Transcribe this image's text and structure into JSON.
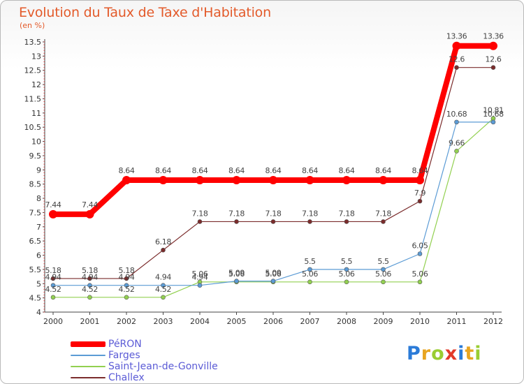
{
  "header": {
    "title": "Evolution du Taux de Taxe d'Habitation",
    "subtitle": "(en %)"
  },
  "logo": {
    "letters": [
      "P",
      "r",
      "o",
      "x",
      "i",
      "t",
      "i"
    ],
    "colors": [
      "#2b7bd8",
      "#e8a520",
      "#9acd32",
      "#e23a2a",
      "#2b7bd8",
      "#e8a520",
      "#9acd32"
    ]
  },
  "chart_data": {
    "type": "line",
    "title": "Evolution du Taux de Taxe d'Habitation",
    "ylabel": "(en %)",
    "xlabel": "",
    "x": [
      "2000",
      "2001",
      "2002",
      "2003",
      "2004",
      "2005",
      "2006",
      "2007",
      "2008",
      "2009",
      "2010",
      "2011",
      "2012"
    ],
    "ylim": [
      4,
      13.5
    ],
    "yticks": [
      "4",
      "4.5",
      "5",
      "5.5",
      "6",
      "6.5",
      "7",
      "7.5",
      "8",
      "8.5",
      "9",
      "9.5",
      "10",
      "10.5",
      "11",
      "11.5",
      "12",
      "12.5",
      "13",
      "13.5"
    ],
    "grid": false,
    "legend_position": "bottom-left",
    "series": [
      {
        "name": "PéRON",
        "color": "#ff0000",
        "values": [
          7.44,
          7.44,
          8.64,
          8.64,
          8.64,
          8.64,
          8.64,
          8.64,
          8.64,
          8.64,
          8.64,
          13.36,
          13.36
        ],
        "labels": [
          "7.44",
          "7.44",
          "8.64",
          "8.64",
          "8.64",
          "8.64",
          "8.64",
          "8.64",
          "8.64",
          "8.64",
          "8.64",
          "13.36",
          "13.36"
        ]
      },
      {
        "name": "Farges",
        "color": "#5b9bd5",
        "values": [
          4.94,
          4.94,
          4.94,
          4.94,
          4.94,
          5.09,
          5.09,
          5.5,
          5.5,
          5.5,
          6.05,
          10.68,
          10.68
        ],
        "labels": [
          "4.94",
          "4.94",
          "4.94",
          "4.94",
          "4.94",
          "5.09",
          "5.09",
          "5.5",
          "5.5",
          "5.5",
          "6.05",
          "10.68",
          "10.68"
        ]
      },
      {
        "name": "Saint-Jean-de-Gonville",
        "color": "#92d050",
        "values": [
          4.52,
          4.52,
          4.52,
          4.52,
          5.06,
          5.06,
          5.06,
          5.06,
          5.06,
          5.06,
          5.06,
          9.66,
          10.81
        ],
        "labels": [
          "4.52",
          "4.52",
          "4.52",
          "4.52",
          "5.06",
          "5.06",
          "5.06",
          "5.06",
          "5.06",
          "5.06",
          "5.06",
          "9.66",
          "10.81"
        ]
      },
      {
        "name": "Challex",
        "color": "#7b2c2c",
        "values": [
          5.18,
          5.18,
          5.18,
          6.18,
          7.18,
          7.18,
          7.18,
          7.18,
          7.18,
          7.18,
          7.9,
          12.6,
          12.6
        ],
        "labels": [
          "5.18",
          "5.18",
          "5.18",
          "6.18",
          "7.18",
          "7.18",
          "7.18",
          "7.18",
          "7.18",
          "7.18",
          "7.9",
          "12.6",
          "12.6"
        ]
      }
    ]
  }
}
